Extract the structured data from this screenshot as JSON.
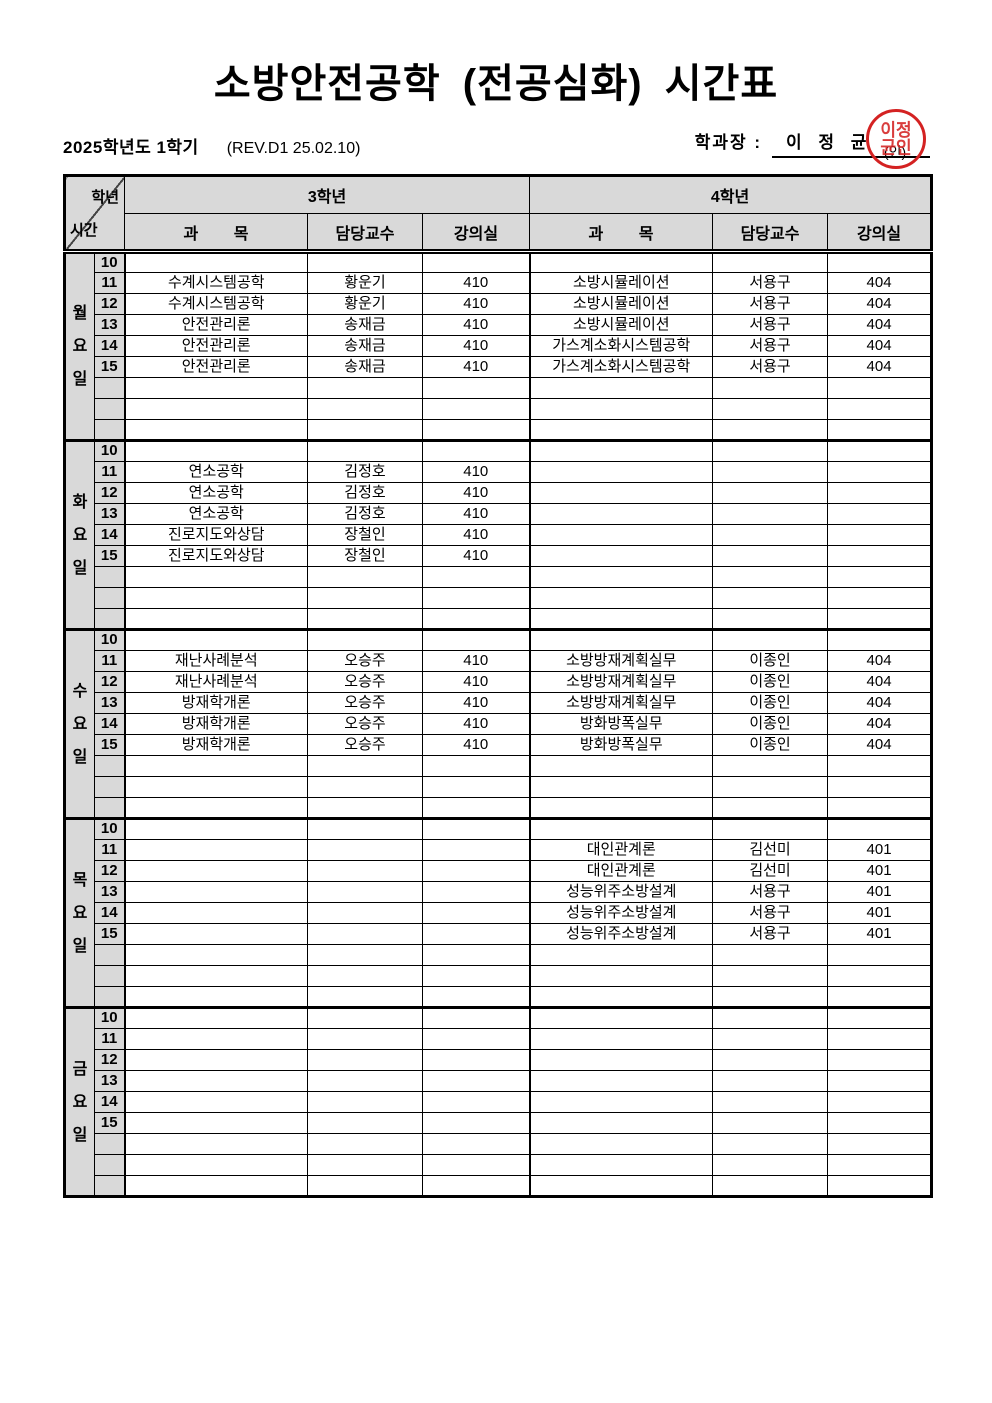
{
  "title": "소방안전공학 (전공심화) 시간표",
  "meta": {
    "semester": "2025학년도 1학기",
    "revision": "(REV.D1 25.02.10)",
    "head_label": "학과장 :",
    "head_name": "이 정 균",
    "seal_note": "(인)",
    "seal_chars": [
      "이",
      "정",
      "균",
      "인"
    ]
  },
  "colors": {
    "header_bg": "#d9d9d9",
    "seal_red": "#d42222",
    "border": "#000000"
  },
  "table": {
    "corner": {
      "top": "학년",
      "bottom": "시간"
    },
    "grade_headers": [
      "3학년",
      "4학년"
    ],
    "col_headers": [
      "과        목",
      "담당교수",
      "강의실"
    ],
    "times": [
      "10",
      "11",
      "12",
      "13",
      "14",
      "15",
      "",
      "",
      ""
    ],
    "days": [
      {
        "label": "월요일",
        "rows": [
          {
            "g3": [
              "",
              "",
              ""
            ],
            "g4": [
              "",
              "",
              ""
            ]
          },
          {
            "g3": [
              "수계시스템공학",
              "황운기",
              "410"
            ],
            "g4": [
              "소방시뮬레이션",
              "서용구",
              "404"
            ]
          },
          {
            "g3": [
              "수계시스템공학",
              "황운기",
              "410"
            ],
            "g4": [
              "소방시뮬레이션",
              "서용구",
              "404"
            ]
          },
          {
            "g3": [
              "안전관리론",
              "송재금",
              "410"
            ],
            "g4": [
              "소방시뮬레이션",
              "서용구",
              "404"
            ]
          },
          {
            "g3": [
              "안전관리론",
              "송재금",
              "410"
            ],
            "g4": [
              "가스계소화시스템공학",
              "서용구",
              "404"
            ]
          },
          {
            "g3": [
              "안전관리론",
              "송재금",
              "410"
            ],
            "g4": [
              "가스계소화시스템공학",
              "서용구",
              "404"
            ]
          },
          {
            "g3": [
              "",
              "",
              ""
            ],
            "g4": [
              "",
              "",
              ""
            ]
          },
          {
            "g3": [
              "",
              "",
              ""
            ],
            "g4": [
              "",
              "",
              ""
            ]
          },
          {
            "g3": [
              "",
              "",
              ""
            ],
            "g4": [
              "",
              "",
              ""
            ]
          }
        ]
      },
      {
        "label": "화요일",
        "rows": [
          {
            "g3": [
              "",
              "",
              ""
            ],
            "g4": [
              "",
              "",
              ""
            ]
          },
          {
            "g3": [
              "연소공학",
              "김정호",
              "410"
            ],
            "g4": [
              "",
              "",
              ""
            ]
          },
          {
            "g3": [
              "연소공학",
              "김정호",
              "410"
            ],
            "g4": [
              "",
              "",
              ""
            ]
          },
          {
            "g3": [
              "연소공학",
              "김정호",
              "410"
            ],
            "g4": [
              "",
              "",
              ""
            ]
          },
          {
            "g3": [
              "진로지도와상담",
              "장철인",
              "410"
            ],
            "g4": [
              "",
              "",
              ""
            ]
          },
          {
            "g3": [
              "진로지도와상담",
              "장철인",
              "410"
            ],
            "g4": [
              "",
              "",
              ""
            ]
          },
          {
            "g3": [
              "",
              "",
              ""
            ],
            "g4": [
              "",
              "",
              ""
            ]
          },
          {
            "g3": [
              "",
              "",
              ""
            ],
            "g4": [
              "",
              "",
              ""
            ]
          },
          {
            "g3": [
              "",
              "",
              ""
            ],
            "g4": [
              "",
              "",
              ""
            ]
          }
        ]
      },
      {
        "label": "수요일",
        "rows": [
          {
            "g3": [
              "",
              "",
              ""
            ],
            "g4": [
              "",
              "",
              ""
            ]
          },
          {
            "g3": [
              "재난사례분석",
              "오승주",
              "410"
            ],
            "g4": [
              "소방방재계획실무",
              "이종인",
              "404"
            ]
          },
          {
            "g3": [
              "재난사례분석",
              "오승주",
              "410"
            ],
            "g4": [
              "소방방재계획실무",
              "이종인",
              "404"
            ]
          },
          {
            "g3": [
              "방재학개론",
              "오승주",
              "410"
            ],
            "g4": [
              "소방방재계획실무",
              "이종인",
              "404"
            ]
          },
          {
            "g3": [
              "방재학개론",
              "오승주",
              "410"
            ],
            "g4": [
              "방화방폭실무",
              "이종인",
              "404"
            ]
          },
          {
            "g3": [
              "방재학개론",
              "오승주",
              "410"
            ],
            "g4": [
              "방화방폭실무",
              "이종인",
              "404"
            ]
          },
          {
            "g3": [
              "",
              "",
              ""
            ],
            "g4": [
              "",
              "",
              ""
            ]
          },
          {
            "g3": [
              "",
              "",
              ""
            ],
            "g4": [
              "",
              "",
              ""
            ]
          },
          {
            "g3": [
              "",
              "",
              ""
            ],
            "g4": [
              "",
              "",
              ""
            ]
          }
        ]
      },
      {
        "label": "목요일",
        "rows": [
          {
            "g3": [
              "",
              "",
              ""
            ],
            "g4": [
              "",
              "",
              ""
            ]
          },
          {
            "g3": [
              "",
              "",
              ""
            ],
            "g4": [
              "대인관계론",
              "김선미",
              "401"
            ]
          },
          {
            "g3": [
              "",
              "",
              ""
            ],
            "g4": [
              "대인관계론",
              "김선미",
              "401"
            ]
          },
          {
            "g3": [
              "",
              "",
              ""
            ],
            "g4": [
              "성능위주소방설계",
              "서용구",
              "401"
            ]
          },
          {
            "g3": [
              "",
              "",
              ""
            ],
            "g4": [
              "성능위주소방설계",
              "서용구",
              "401"
            ]
          },
          {
            "g3": [
              "",
              "",
              ""
            ],
            "g4": [
              "성능위주소방설계",
              "서용구",
              "401"
            ]
          },
          {
            "g3": [
              "",
              "",
              ""
            ],
            "g4": [
              "",
              "",
              ""
            ]
          },
          {
            "g3": [
              "",
              "",
              ""
            ],
            "g4": [
              "",
              "",
              ""
            ]
          },
          {
            "g3": [
              "",
              "",
              ""
            ],
            "g4": [
              "",
              "",
              ""
            ]
          }
        ]
      },
      {
        "label": "금요일",
        "rows": [
          {
            "g3": [
              "",
              "",
              ""
            ],
            "g4": [
              "",
              "",
              ""
            ]
          },
          {
            "g3": [
              "",
              "",
              ""
            ],
            "g4": [
              "",
              "",
              ""
            ]
          },
          {
            "g3": [
              "",
              "",
              ""
            ],
            "g4": [
              "",
              "",
              ""
            ]
          },
          {
            "g3": [
              "",
              "",
              ""
            ],
            "g4": [
              "",
              "",
              ""
            ]
          },
          {
            "g3": [
              "",
              "",
              ""
            ],
            "g4": [
              "",
              "",
              ""
            ]
          },
          {
            "g3": [
              "",
              "",
              ""
            ],
            "g4": [
              "",
              "",
              ""
            ]
          },
          {
            "g3": [
              "",
              "",
              ""
            ],
            "g4": [
              "",
              "",
              ""
            ]
          },
          {
            "g3": [
              "",
              "",
              ""
            ],
            "g4": [
              "",
              "",
              ""
            ]
          },
          {
            "g3": [
              "",
              "",
              ""
            ],
            "g4": [
              "",
              "",
              ""
            ]
          }
        ]
      }
    ]
  }
}
